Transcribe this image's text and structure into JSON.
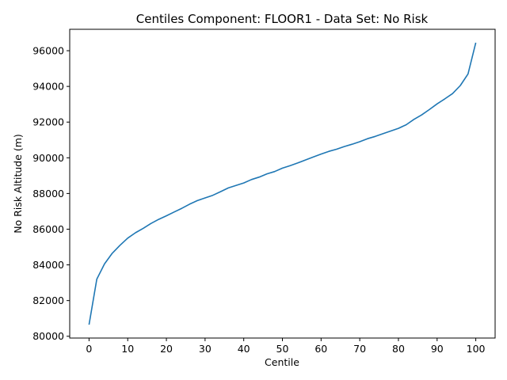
{
  "chart_data": {
    "type": "line",
    "title": "Centiles Component: FLOOR1 - Data Set: No Risk",
    "xlabel": "Centile",
    "ylabel": "No Risk Altitude (m)",
    "xlim": [
      -5,
      105
    ],
    "ylim": [
      79900,
      97200
    ],
    "xticks": [
      0,
      10,
      20,
      30,
      40,
      50,
      60,
      70,
      80,
      90,
      100
    ],
    "yticks": [
      80000,
      82000,
      84000,
      86000,
      88000,
      90000,
      92000,
      94000,
      96000
    ],
    "grid": false,
    "line_color": "#1f77b4",
    "series": [
      {
        "x": [
          0,
          2,
          4,
          6,
          8,
          10,
          12,
          14,
          16,
          18,
          20,
          22,
          24,
          26,
          28,
          30,
          32,
          34,
          36,
          38,
          40,
          42,
          44,
          46,
          48,
          50,
          52,
          54,
          56,
          58,
          60,
          62,
          64,
          66,
          68,
          70,
          72,
          74,
          76,
          78,
          80,
          82,
          84,
          86,
          88,
          90,
          92,
          94,
          96,
          98,
          100
        ],
        "y": [
          80650,
          83200,
          84050,
          84650,
          85100,
          85500,
          85800,
          86050,
          86320,
          86550,
          86750,
          86960,
          87170,
          87400,
          87600,
          87750,
          87900,
          88100,
          88310,
          88450,
          88590,
          88780,
          88920,
          89100,
          89230,
          89420,
          89560,
          89710,
          89880,
          90050,
          90210,
          90360,
          90480,
          90630,
          90760,
          90900,
          91070,
          91200,
          91350,
          91500,
          91650,
          91850,
          92150,
          92400,
          92700,
          93020,
          93300,
          93600,
          94050,
          94700,
          96450
        ]
      }
    ]
  }
}
